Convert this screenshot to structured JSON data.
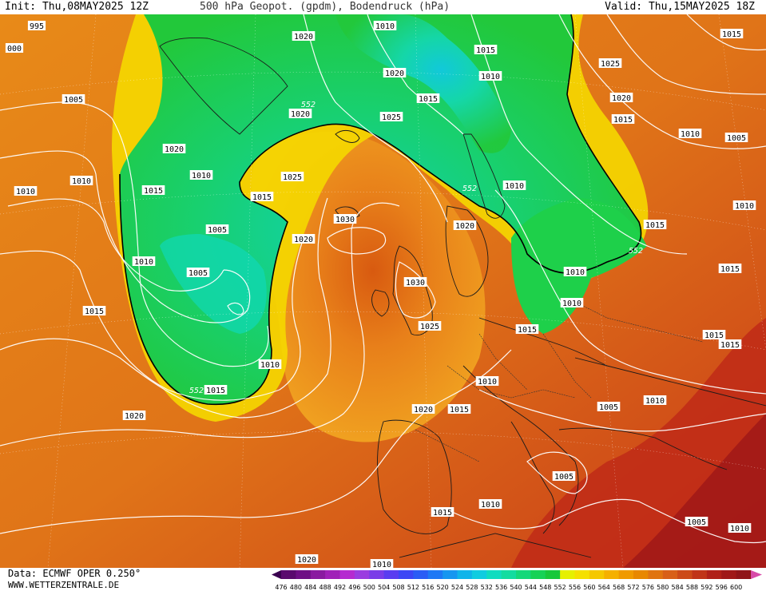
{
  "header": {
    "init": "Init: Thu,08MAY2025 12Z",
    "title": "500 hPa Geopot. (gpdm), Bodendruck (hPa)",
    "valid": "Valid: Thu,15MAY2025 18Z"
  },
  "footer": {
    "data_source": "Data: ECMWF OPER 0.250°",
    "website": "WWW.WETTERZENTRALE.DE"
  },
  "legend": {
    "values": [
      "476",
      "480",
      "484",
      "488",
      "492",
      "496",
      "500",
      "504",
      "508",
      "512",
      "516",
      "520",
      "524",
      "528",
      "532",
      "536",
      "540",
      "544",
      "548",
      "552",
      "556",
      "560",
      "564",
      "568",
      "572",
      "576",
      "580",
      "584",
      "588",
      "592",
      "596",
      "600"
    ],
    "colors": [
      "#5a0a6e",
      "#6e0f85",
      "#8a1aa0",
      "#a020b8",
      "#b52ad0",
      "#9a3ce0",
      "#7a3ce8",
      "#5a3cf0",
      "#3c46f5",
      "#2a5cf5",
      "#1e78f5",
      "#1696f0",
      "#10b4ea",
      "#10cce0",
      "#10dcc0",
      "#12dca0",
      "#14d87a",
      "#16d256",
      "#18c83a",
      "#e6f000",
      "#f5e000",
      "#f5c800",
      "#f5b000",
      "#f09a00",
      "#e88800",
      "#e07410",
      "#d86018",
      "#cc4a18",
      "#c03418",
      "#b02018",
      "#a01818",
      "#901418"
    ]
  },
  "map": {
    "pressure_labels": [
      {
        "text": "995",
        "pos": [
          46,
          32
        ]
      },
      {
        "text": "000",
        "pos": [
          18,
          60
        ]
      },
      {
        "text": "1005",
        "pos": [
          92,
          124
        ]
      },
      {
        "text": "1020",
        "pos": [
          218,
          186
        ]
      },
      {
        "text": "1010",
        "pos": [
          102,
          226
        ]
      },
      {
        "text": "1010",
        "pos": [
          32,
          239
        ]
      },
      {
        "text": "1010",
        "pos": [
          252,
          219
        ]
      },
      {
        "text": "1015",
        "pos": [
          192,
          238
        ]
      },
      {
        "text": "1005",
        "pos": [
          272,
          287
        ]
      },
      {
        "text": "1010",
        "pos": [
          180,
          327
        ]
      },
      {
        "text": "1005",
        "pos": [
          248,
          341
        ]
      },
      {
        "text": "1015",
        "pos": [
          118,
          389
        ]
      },
      {
        "text": "1010",
        "pos": [
          338,
          456
        ]
      },
      {
        "text": "1015",
        "pos": [
          270,
          488
        ]
      },
      {
        "text": "1020",
        "pos": [
          168,
          520
        ]
      },
      {
        "text": "1020",
        "pos": [
          380,
          45
        ]
      },
      {
        "text": "1010",
        "pos": [
          482,
          32
        ]
      },
      {
        "text": "1015",
        "pos": [
          608,
          62
        ]
      },
      {
        "text": "1020",
        "pos": [
          494,
          91
        ]
      },
      {
        "text": "1015",
        "pos": [
          536,
          123
        ]
      },
      {
        "text": "1010",
        "pos": [
          614,
          95
        ]
      },
      {
        "text": "1020",
        "pos": [
          376,
          142
        ]
      },
      {
        "text": "1025",
        "pos": [
          490,
          146
        ]
      },
      {
        "text": "1025",
        "pos": [
          366,
          221
        ]
      },
      {
        "text": "1015",
        "pos": [
          328,
          246
        ]
      },
      {
        "text": "1030",
        "pos": [
          432,
          274
        ]
      },
      {
        "text": "1020",
        "pos": [
          380,
          299
        ]
      },
      {
        "text": "1020",
        "pos": [
          582,
          282
        ]
      },
      {
        "text": "1030",
        "pos": [
          520,
          353
        ]
      },
      {
        "text": "1025",
        "pos": [
          538,
          408
        ]
      },
      {
        "text": "1010",
        "pos": [
          644,
          232
        ]
      },
      {
        "text": "1015",
        "pos": [
          820,
          281
        ]
      },
      {
        "text": "1010",
        "pos": [
          720,
          340
        ]
      },
      {
        "text": "1010",
        "pos": [
          716,
          379
        ]
      },
      {
        "text": "1015",
        "pos": [
          660,
          412
        ]
      },
      {
        "text": "1015",
        "pos": [
          916,
          42
        ]
      },
      {
        "text": "1025",
        "pos": [
          764,
          79
        ]
      },
      {
        "text": "1020",
        "pos": [
          778,
          122
        ]
      },
      {
        "text": "1015",
        "pos": [
          780,
          149
        ]
      },
      {
        "text": "1010",
        "pos": [
          864,
          167
        ]
      },
      {
        "text": "1005",
        "pos": [
          922,
          172
        ]
      },
      {
        "text": "1010",
        "pos": [
          932,
          257
        ]
      },
      {
        "text": "1015",
        "pos": [
          914,
          336
        ]
      },
      {
        "text": "1015",
        "pos": [
          894,
          419
        ]
      },
      {
        "text": "1015",
        "pos": [
          914,
          431
        ]
      },
      {
        "text": "1010",
        "pos": [
          610,
          477
        ]
      },
      {
        "text": "1010",
        "pos": [
          820,
          501
        ]
      },
      {
        "text": "1005",
        "pos": [
          762,
          509
        ]
      },
      {
        "text": "1020",
        "pos": [
          530,
          512
        ]
      },
      {
        "text": "1015",
        "pos": [
          575,
          512
        ]
      },
      {
        "text": "1005",
        "pos": [
          706,
          596
        ]
      },
      {
        "text": "1015",
        "pos": [
          554,
          641
        ]
      },
      {
        "text": "1010",
        "pos": [
          614,
          631
        ]
      },
      {
        "text": "1005",
        "pos": [
          872,
          653
        ]
      },
      {
        "text": "1010",
        "pos": [
          926,
          661
        ]
      },
      {
        "text": "1020",
        "pos": [
          384,
          700
        ]
      },
      {
        "text": "1010",
        "pos": [
          478,
          706
        ]
      }
    ],
    "geopot_labels": [
      {
        "text": "552",
        "pos": [
          386,
          130
        ]
      },
      {
        "text": "552",
        "pos": [
          588,
          235
        ]
      },
      {
        "text": "552",
        "pos": [
          796,
          313
        ]
      },
      {
        "text": "552",
        "pos": [
          246,
          488
        ]
      }
    ]
  }
}
